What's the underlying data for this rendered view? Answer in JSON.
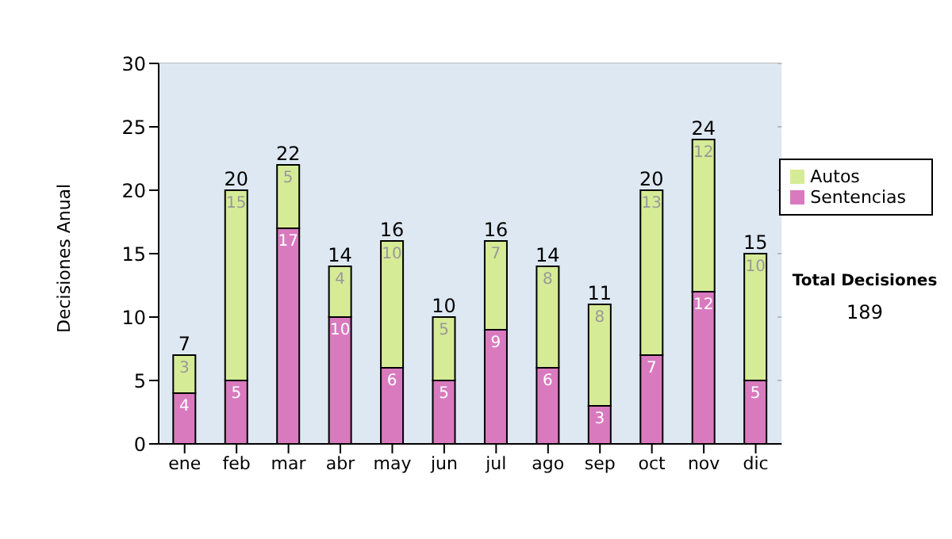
{
  "chart_data": {
    "type": "bar",
    "stacked": true,
    "ylabel": "Decisiones Anual",
    "categories": [
      "ene",
      "feb",
      "mar",
      "abr",
      "may",
      "jun",
      "jul",
      "ago",
      "sep",
      "oct",
      "nov",
      "dic"
    ],
    "series": [
      {
        "name": "Sentencias",
        "color": "#d97abf",
        "values": [
          4,
          5,
          17,
          10,
          6,
          5,
          9,
          6,
          3,
          7,
          12,
          5
        ]
      },
      {
        "name": "Autos",
        "color": "#d6eb96",
        "values": [
          3,
          15,
          5,
          4,
          10,
          5,
          7,
          8,
          8,
          13,
          12,
          10
        ]
      }
    ],
    "totals": [
      "7",
      "20",
      "22",
      "14",
      "16",
      "10",
      "16",
      "14",
      "11",
      "20",
      "24",
      "15"
    ],
    "data_labels": true,
    "ylim": [
      0,
      30
    ],
    "yticks": [
      0,
      5,
      10,
      15,
      20,
      25,
      30
    ],
    "grid": "y",
    "legend": "right",
    "annotations": [
      "Total Decisiones",
      "189"
    ]
  }
}
